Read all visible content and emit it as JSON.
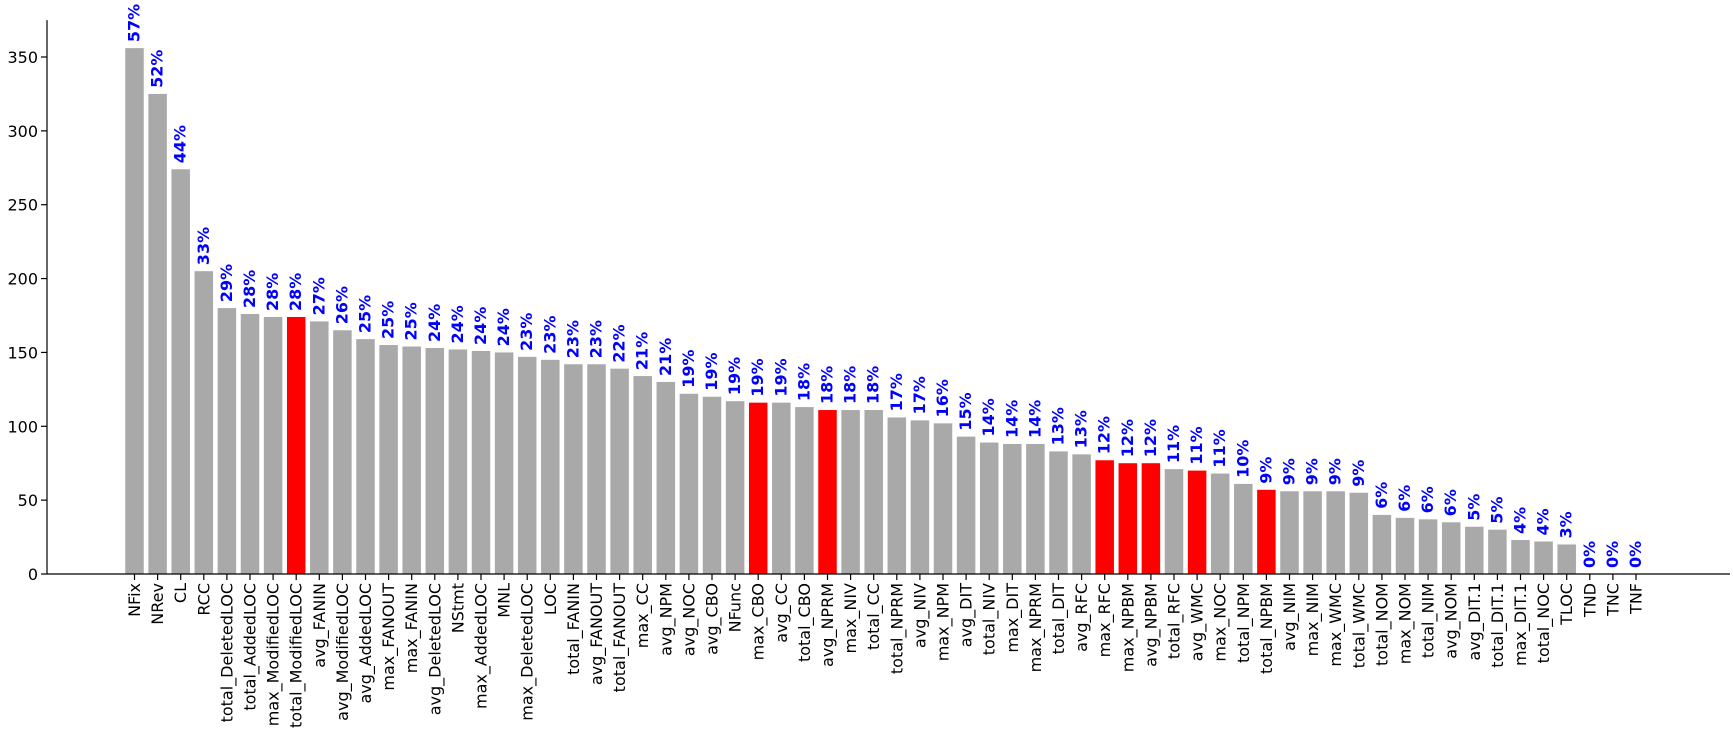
{
  "chart_data": {
    "type": "bar",
    "title": "",
    "xlabel": "",
    "ylabel": "",
    "ylim": [
      0,
      375
    ],
    "yticks": [
      0,
      50,
      100,
      150,
      200,
      250,
      300,
      350
    ],
    "grid": false,
    "legend": "none",
    "colors": {
      "default": "#a9a9a9",
      "highlight": "#ff0000",
      "label": "#0000ff"
    },
    "bars": [
      {
        "category": "NFix",
        "value": 356,
        "label": "57%",
        "highlight": false
      },
      {
        "category": "NRev",
        "value": 325,
        "label": "52%",
        "highlight": false
      },
      {
        "category": "CL",
        "value": 274,
        "label": "44%",
        "highlight": false
      },
      {
        "category": "RCC",
        "value": 205,
        "label": "33%",
        "highlight": false
      },
      {
        "category": "total_DeletedLOC",
        "value": 180,
        "label": "29%",
        "highlight": false
      },
      {
        "category": "total_AddedLOC",
        "value": 176,
        "label": "28%",
        "highlight": false
      },
      {
        "category": "max_ModifiedLOC",
        "value": 174,
        "label": "28%",
        "highlight": false
      },
      {
        "category": "total_ModifiedLOC",
        "value": 174,
        "label": "28%",
        "highlight": true
      },
      {
        "category": "avg_FANIN",
        "value": 171,
        "label": "27%",
        "highlight": false
      },
      {
        "category": "avg_ModifiedLOC",
        "value": 165,
        "label": "26%",
        "highlight": false
      },
      {
        "category": "avg_AddedLOC",
        "value": 159,
        "label": "25%",
        "highlight": false
      },
      {
        "category": "max_FANOUT",
        "value": 155,
        "label": "25%",
        "highlight": false
      },
      {
        "category": "max_FANIN",
        "value": 154,
        "label": "25%",
        "highlight": false
      },
      {
        "category": "avg_DeletedLOC",
        "value": 153,
        "label": "24%",
        "highlight": false
      },
      {
        "category": "NStmt",
        "value": 152,
        "label": "24%",
        "highlight": false
      },
      {
        "category": "max_AddedLOC",
        "value": 151,
        "label": "24%",
        "highlight": false
      },
      {
        "category": "MNL",
        "value": 150,
        "label": "24%",
        "highlight": false
      },
      {
        "category": "max_DeletedLOC",
        "value": 147,
        "label": "23%",
        "highlight": false
      },
      {
        "category": "LOC",
        "value": 145,
        "label": "23%",
        "highlight": false
      },
      {
        "category": "total_FANIN",
        "value": 142,
        "label": "23%",
        "highlight": false
      },
      {
        "category": "avg_FANOUT",
        "value": 142,
        "label": "23%",
        "highlight": false
      },
      {
        "category": "total_FANOUT",
        "value": 139,
        "label": "22%",
        "highlight": false
      },
      {
        "category": "max_CC",
        "value": 134,
        "label": "21%",
        "highlight": false
      },
      {
        "category": "avg_NPM",
        "value": 130,
        "label": "21%",
        "highlight": false
      },
      {
        "category": "avg_NOC",
        "value": 122,
        "label": "19%",
        "highlight": false
      },
      {
        "category": "avg_CBO",
        "value": 120,
        "label": "19%",
        "highlight": false
      },
      {
        "category": "NFunc",
        "value": 117,
        "label": "19%",
        "highlight": false
      },
      {
        "category": "max_CBO",
        "value": 116,
        "label": "19%",
        "highlight": true
      },
      {
        "category": "avg_CC",
        "value": 116,
        "label": "19%",
        "highlight": false
      },
      {
        "category": "total_CBO",
        "value": 113,
        "label": "18%",
        "highlight": false
      },
      {
        "category": "avg_NPRM",
        "value": 111,
        "label": "18%",
        "highlight": true
      },
      {
        "category": "max_NIV",
        "value": 111,
        "label": "18%",
        "highlight": false
      },
      {
        "category": "total_CC",
        "value": 111,
        "label": "18%",
        "highlight": false
      },
      {
        "category": "total_NPRM",
        "value": 106,
        "label": "17%",
        "highlight": false
      },
      {
        "category": "avg_NIV",
        "value": 104,
        "label": "17%",
        "highlight": false
      },
      {
        "category": "max_NPM",
        "value": 102,
        "label": "16%",
        "highlight": false
      },
      {
        "category": "avg_DIT",
        "value": 93,
        "label": "15%",
        "highlight": false
      },
      {
        "category": "total_NIV",
        "value": 89,
        "label": "14%",
        "highlight": false
      },
      {
        "category": "max_DIT",
        "value": 88,
        "label": "14%",
        "highlight": false
      },
      {
        "category": "max_NPRM",
        "value": 88,
        "label": "14%",
        "highlight": false
      },
      {
        "category": "total_DIT",
        "value": 83,
        "label": "13%",
        "highlight": false
      },
      {
        "category": "avg_RFC",
        "value": 81,
        "label": "13%",
        "highlight": false
      },
      {
        "category": "max_RFC",
        "value": 77,
        "label": "12%",
        "highlight": true
      },
      {
        "category": "max_NPBM",
        "value": 75,
        "label": "12%",
        "highlight": true
      },
      {
        "category": "avg_NPBM",
        "value": 75,
        "label": "12%",
        "highlight": true
      },
      {
        "category": "total_RFC",
        "value": 71,
        "label": "11%",
        "highlight": false
      },
      {
        "category": "avg_WMC",
        "value": 70,
        "label": "11%",
        "highlight": true
      },
      {
        "category": "max_NOC",
        "value": 68,
        "label": "11%",
        "highlight": false
      },
      {
        "category": "total_NPM",
        "value": 61,
        "label": "10%",
        "highlight": false
      },
      {
        "category": "total_NPBM",
        "value": 57,
        "label": "9%",
        "highlight": true
      },
      {
        "category": "avg_NIM",
        "value": 56,
        "label": "9%",
        "highlight": false
      },
      {
        "category": "max_NIM",
        "value": 56,
        "label": "9%",
        "highlight": false
      },
      {
        "category": "max_WMC",
        "value": 56,
        "label": "9%",
        "highlight": false
      },
      {
        "category": "total_WMC",
        "value": 55,
        "label": "9%",
        "highlight": false
      },
      {
        "category": "total_NOM",
        "value": 40,
        "label": "6%",
        "highlight": false
      },
      {
        "category": "max_NOM",
        "value": 38,
        "label": "6%",
        "highlight": false
      },
      {
        "category": "total_NIM",
        "value": 37,
        "label": "6%",
        "highlight": false
      },
      {
        "category": "avg_NOM",
        "value": 35,
        "label": "6%",
        "highlight": false
      },
      {
        "category": "avg_DIT.1",
        "value": 32,
        "label": "5%",
        "highlight": false
      },
      {
        "category": "total_DIT.1",
        "value": 30,
        "label": "5%",
        "highlight": false
      },
      {
        "category": "max_DIT.1",
        "value": 23,
        "label": "4%",
        "highlight": false
      },
      {
        "category": "total_NOC",
        "value": 22,
        "label": "4%",
        "highlight": false
      },
      {
        "category": "TLOC",
        "value": 20,
        "label": "3%",
        "highlight": false
      },
      {
        "category": "TND",
        "value": 0,
        "label": "0%",
        "highlight": false
      },
      {
        "category": "TNC",
        "value": 0,
        "label": "0%",
        "highlight": false
      },
      {
        "category": "TNF",
        "value": 0,
        "label": "0%",
        "highlight": false
      }
    ]
  }
}
